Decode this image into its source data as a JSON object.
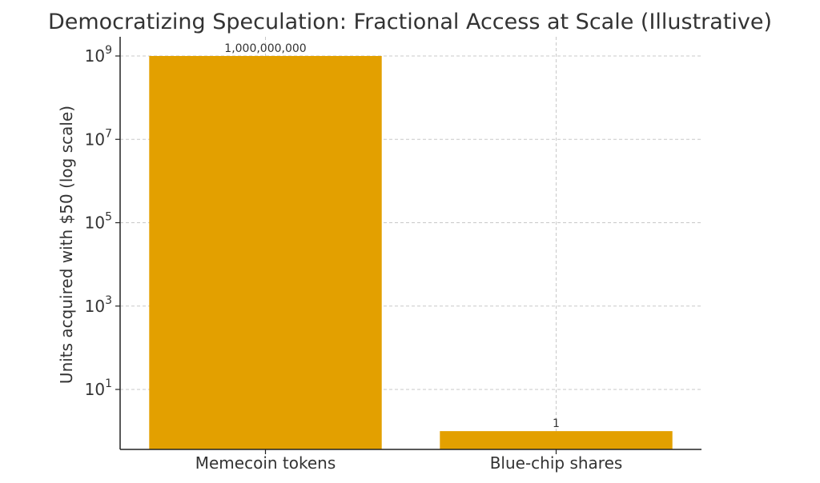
{
  "chart_data": {
    "type": "bar",
    "title": "Democratizing Speculation: Fractional Access at Scale (Illustrative)",
    "xlabel": "",
    "ylabel": "Units acquired with $50 (log scale)",
    "yscale": "log",
    "categories": [
      "Memecoin tokens",
      "Blue-chip shares"
    ],
    "values": [
      1000000000,
      1
    ],
    "data_labels": [
      "1,000,000,000",
      "1"
    ],
    "ytick_exponents": [
      1,
      3,
      5,
      7,
      9
    ],
    "ylim": [
      0.17,
      2000000000
    ],
    "bar_color": "#E3A000",
    "grid": true
  }
}
